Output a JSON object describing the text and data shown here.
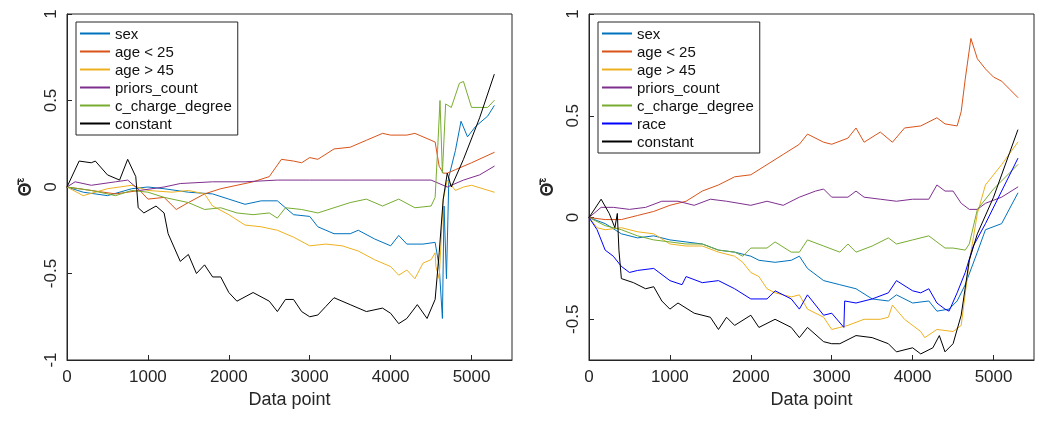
{
  "chart_data": [
    {
      "type": "line",
      "xlabel": "Data point",
      "ylabel": "Θ̄$^{ε}$",
      "xlim": [
        0,
        5500
      ],
      "xticks": [
        0,
        1000,
        2000,
        3000,
        4000,
        5000
      ],
      "ylim": [
        -1,
        1
      ],
      "yticks": [
        -1,
        -0.5,
        0,
        0.5,
        1
      ],
      "grid": false,
      "legend": "top left",
      "marker": "none",
      "line_style": "solid",
      "series": [
        {
          "name": "sex",
          "color": "#0072bd",
          "x": [
            0,
            200,
            500,
            800,
            1000,
            1200,
            1500,
            1800,
            2000,
            2200,
            2400,
            2600,
            2800,
            3000,
            3100,
            3300,
            3500,
            3600,
            3800,
            4000,
            4100,
            4200,
            4400,
            4550,
            4600,
            4640,
            4660,
            4690,
            4720,
            4800,
            4870,
            4950,
            5050,
            5200,
            5280
          ],
          "values": [
            0,
            -0.03,
            -0.05,
            -0.01,
            0,
            -0.01,
            -0.03,
            -0.04,
            -0.07,
            -0.1,
            -0.08,
            -0.08,
            -0.16,
            -0.17,
            -0.23,
            -0.27,
            -0.27,
            -0.25,
            -0.3,
            -0.34,
            -0.28,
            -0.33,
            -0.33,
            -0.32,
            -0.46,
            -0.76,
            -0.11,
            -0.53,
            0.06,
            0.21,
            0.38,
            0.29,
            0.35,
            0.41,
            0.47
          ]
        },
        {
          "name": "age < 25",
          "color": "#d95319",
          "x": [
            0,
            300,
            600,
            900,
            1000,
            1200,
            1350,
            1500,
            1700,
            1900,
            2100,
            2300,
            2500,
            2650,
            2800,
            2900,
            3000,
            3100,
            3300,
            3500,
            3700,
            3900,
            4000,
            4200,
            4300,
            4500,
            4550,
            4600,
            4650,
            4700,
            4800,
            5000,
            5280
          ],
          "values": [
            0,
            -0.02,
            -0.04,
            -0.02,
            -0.07,
            -0.06,
            -0.13,
            -0.09,
            -0.04,
            -0.01,
            0.01,
            0.03,
            0.06,
            0.16,
            0.15,
            0.14,
            0.17,
            0.16,
            0.22,
            0.23,
            0.27,
            0.31,
            0.3,
            0.3,
            0.31,
            0.27,
            0.26,
            0.12,
            0.08,
            0.08,
            0.1,
            0.14,
            0.2
          ]
        },
        {
          "name": "age > 45",
          "color": "#edb120",
          "x": [
            0,
            200,
            500,
            800,
            1000,
            1300,
            1500,
            1700,
            1800,
            2000,
            2200,
            2400,
            2600,
            2800,
            3000,
            3200,
            3400,
            3600,
            3800,
            4000,
            4100,
            4200,
            4300,
            4400,
            4500,
            4550,
            4560,
            4600,
            4650,
            4700,
            4800,
            4900,
            5000,
            5280
          ],
          "values": [
            0,
            -0.05,
            -0.01,
            0.01,
            -0.02,
            -0.03,
            -0.02,
            -0.04,
            -0.11,
            -0.16,
            -0.22,
            -0.23,
            -0.25,
            -0.29,
            -0.34,
            -0.33,
            -0.34,
            -0.37,
            -0.42,
            -0.46,
            -0.51,
            -0.48,
            -0.53,
            -0.44,
            -0.42,
            -0.38,
            -0.46,
            -0.53,
            -0.07,
            0.04,
            -0.02,
            0,
            0.01,
            -0.03
          ]
        },
        {
          "name": "priors_count",
          "color": "#7e2f8e",
          "x": [
            0,
            100,
            300,
            600,
            750,
            900,
            1200,
            1400,
            1800,
            2200,
            2600,
            3000,
            3500,
            4000,
            4500,
            4700,
            4900,
            5100,
            5280
          ],
          "values": [
            0,
            0.03,
            0.01,
            0.03,
            0.04,
            -0.02,
            0,
            0.02,
            0.03,
            0.03,
            0.04,
            0.04,
            0.04,
            0.04,
            0.04,
            0,
            0.04,
            0.07,
            0.12
          ]
        },
        {
          "name": "c_charge_degree",
          "color": "#77ac30",
          "x": [
            0,
            300,
            600,
            800,
            1000,
            1200,
            1500,
            1700,
            1900,
            2100,
            2300,
            2500,
            2600,
            2700,
            2900,
            3100,
            3300,
            3500,
            3700,
            3900,
            4100,
            4300,
            4500,
            4550,
            4580,
            4610,
            4640,
            4680,
            4750,
            4850,
            4900,
            5000,
            5200,
            5280
          ],
          "values": [
            0,
            -0.02,
            -0.05,
            -0.02,
            -0.03,
            -0.06,
            -0.09,
            -0.13,
            -0.12,
            -0.15,
            -0.16,
            -0.15,
            -0.18,
            -0.12,
            -0.13,
            -0.15,
            -0.12,
            -0.09,
            -0.07,
            -0.11,
            -0.07,
            -0.12,
            -0.11,
            -0.06,
            0.21,
            0.5,
            0.08,
            0.48,
            0.46,
            0.6,
            0.61,
            0.46,
            0.46,
            0.5
          ]
        },
        {
          "name": "constant",
          "color": "#000000",
          "x": [
            0,
            150,
            300,
            350,
            500,
            650,
            750,
            850,
            880,
            950,
            1100,
            1200,
            1250,
            1400,
            1500,
            1600,
            1700,
            1800,
            1900,
            2000,
            2100,
            2300,
            2500,
            2600,
            2700,
            2800,
            2900,
            3000,
            3100,
            3200,
            3300,
            3500,
            3700,
            3900,
            4000,
            4100,
            4200,
            4330,
            4450,
            4550,
            4600,
            4650,
            4700,
            4750,
            4900,
            5100,
            5280
          ],
          "values": [
            0,
            0.15,
            0.14,
            0.15,
            0.07,
            0.04,
            0.16,
            0.06,
            -0.12,
            -0.15,
            -0.11,
            -0.15,
            -0.27,
            -0.43,
            -0.39,
            -0.5,
            -0.45,
            -0.52,
            -0.52,
            -0.61,
            -0.66,
            -0.61,
            -0.66,
            -0.72,
            -0.65,
            -0.65,
            -0.72,
            -0.75,
            -0.74,
            -0.69,
            -0.64,
            -0.68,
            -0.72,
            -0.7,
            -0.73,
            -0.79,
            -0.76,
            -0.68,
            -0.76,
            -0.65,
            -0.38,
            -0.07,
            0.08,
            0,
            0.16,
            0.4,
            0.65
          ]
        }
      ]
    },
    {
      "type": "line",
      "xlabel": "Data point",
      "ylabel": "Θ̄$^{ε}$",
      "xlim": [
        0,
        5500
      ],
      "xticks": [
        0,
        1000,
        2000,
        3000,
        4000,
        5000
      ],
      "ylim": [
        -0.7,
        1
      ],
      "yticks": [
        -0.5,
        0,
        0.5,
        1
      ],
      "grid": false,
      "legend": "top left",
      "marker": "none",
      "line_style": "solid",
      "series": [
        {
          "name": "sex",
          "color": "#0072bd",
          "x": [
            0,
            200,
            400,
            600,
            800,
            1000,
            1200,
            1400,
            1600,
            1800,
            2000,
            2100,
            2300,
            2500,
            2600,
            2700,
            2900,
            3100,
            3300,
            3500,
            3700,
            3800,
            4000,
            4200,
            4300,
            4450,
            4550,
            4650,
            4800,
            4900,
            5100,
            5300
          ],
          "values": [
            0,
            -0.03,
            -0.08,
            -0.1,
            -0.09,
            -0.11,
            -0.12,
            -0.13,
            -0.16,
            -0.17,
            -0.19,
            -0.21,
            -0.22,
            -0.21,
            -0.19,
            -0.25,
            -0.31,
            -0.33,
            -0.35,
            -0.4,
            -0.41,
            -0.38,
            -0.42,
            -0.41,
            -0.46,
            -0.45,
            -0.41,
            -0.33,
            -0.17,
            -0.06,
            -0.03,
            0.12
          ]
        },
        {
          "name": "age < 25",
          "color": "#d95319",
          "x": [
            0,
            200,
            400,
            600,
            800,
            1000,
            1200,
            1400,
            1600,
            1800,
            2000,
            2200,
            2400,
            2600,
            2700,
            2900,
            3000,
            3200,
            3300,
            3400,
            3600,
            3750,
            3900,
            4100,
            4300,
            4400,
            4550,
            4600,
            4650,
            4720,
            4800,
            4900,
            5000,
            5100,
            5200,
            5300
          ],
          "values": [
            0,
            -0.01,
            -0.01,
            0.01,
            0.03,
            0.06,
            0.08,
            0.13,
            0.16,
            0.2,
            0.21,
            0.26,
            0.31,
            0.36,
            0.41,
            0.37,
            0.36,
            0.39,
            0.44,
            0.37,
            0.42,
            0.37,
            0.44,
            0.45,
            0.49,
            0.46,
            0.45,
            0.52,
            0.68,
            0.88,
            0.78,
            0.73,
            0.69,
            0.67,
            0.63,
            0.59
          ]
        },
        {
          "name": "age > 45",
          "color": "#edb120",
          "x": [
            0,
            100,
            200,
            400,
            600,
            800,
            1000,
            1200,
            1400,
            1600,
            1800,
            1900,
            2000,
            2100,
            2200,
            2300,
            2500,
            2600,
            2700,
            2900,
            3000,
            3100,
            3200,
            3400,
            3600,
            3700,
            3750,
            3900,
            4100,
            4150,
            4300,
            4500,
            4600,
            4700,
            4800,
            4900,
            5100,
            5300
          ],
          "values": [
            0,
            -0.05,
            -0.06,
            -0.05,
            -0.07,
            -0.08,
            -0.13,
            -0.14,
            -0.14,
            -0.17,
            -0.19,
            -0.22,
            -0.27,
            -0.29,
            -0.35,
            -0.37,
            -0.39,
            -0.38,
            -0.45,
            -0.49,
            -0.55,
            -0.54,
            -0.53,
            -0.5,
            -0.5,
            -0.49,
            -0.43,
            -0.5,
            -0.56,
            -0.59,
            -0.55,
            -0.56,
            -0.53,
            -0.22,
            0.02,
            0.16,
            0.26,
            0.37
          ]
        },
        {
          "name": "priors_count",
          "color": "#7e2f8e",
          "x": [
            0,
            150,
            300,
            500,
            700,
            900,
            1100,
            1300,
            1500,
            1700,
            2000,
            2200,
            2400,
            2600,
            2800,
            2900,
            3000,
            3200,
            3300,
            3400,
            3600,
            3800,
            4000,
            4200,
            4300,
            4400,
            4500,
            4600,
            4700,
            4800,
            4900,
            5100,
            5300
          ],
          "values": [
            0,
            0.05,
            0.05,
            0.04,
            0.05,
            0.08,
            0.08,
            0.06,
            0.09,
            0.08,
            0.06,
            0.08,
            0.06,
            0.1,
            0.13,
            0.14,
            0.1,
            0.1,
            0.13,
            0.1,
            0.09,
            0.08,
            0.09,
            0.09,
            0.16,
            0.13,
            0.13,
            0.07,
            0.04,
            0.04,
            0.07,
            0.1,
            0.15
          ]
        },
        {
          "name": "c_charge_degree",
          "color": "#77ac30",
          "x": [
            0,
            200,
            400,
            600,
            800,
            1000,
            1200,
            1400,
            1600,
            1800,
            1900,
            2000,
            2200,
            2300,
            2500,
            2600,
            2700,
            2900,
            3100,
            3200,
            3300,
            3500,
            3700,
            3800,
            4000,
            4200,
            4400,
            4500,
            4650,
            4700,
            4800,
            5000,
            5300
          ],
          "values": [
            0,
            -0.04,
            -0.06,
            -0.09,
            -0.11,
            -0.12,
            -0.13,
            -0.13,
            -0.16,
            -0.17,
            -0.19,
            -0.15,
            -0.15,
            -0.12,
            -0.17,
            -0.17,
            -0.11,
            -0.14,
            -0.17,
            -0.13,
            -0.17,
            -0.14,
            -0.1,
            -0.13,
            -0.11,
            -0.09,
            -0.15,
            -0.15,
            -0.16,
            -0.13,
            0.04,
            0.14,
            0.26
          ]
        },
        {
          "name": "race",
          "color": "#0000ff",
          "x": [
            0,
            100,
            200,
            300,
            400,
            500,
            600,
            800,
            1000,
            1150,
            1200,
            1400,
            1600,
            1800,
            2000,
            2200,
            2300,
            2500,
            2600,
            2700,
            2900,
            3000,
            3150,
            3160,
            3300,
            3500,
            3700,
            3800,
            4000,
            4100,
            4200,
            4300,
            4400,
            4450,
            4550,
            4650,
            4750,
            4900,
            5100,
            5300
          ],
          "values": [
            0,
            -0.06,
            -0.16,
            -0.19,
            -0.24,
            -0.27,
            -0.26,
            -0.25,
            -0.31,
            -0.33,
            -0.29,
            -0.32,
            -0.31,
            -0.35,
            -0.4,
            -0.4,
            -0.36,
            -0.4,
            -0.45,
            -0.38,
            -0.48,
            -0.47,
            -0.54,
            -0.41,
            -0.42,
            -0.4,
            -0.37,
            -0.31,
            -0.36,
            -0.37,
            -0.35,
            -0.42,
            -0.45,
            -0.46,
            -0.37,
            -0.27,
            -0.14,
            -0.03,
            0.13,
            0.29
          ]
        },
        {
          "name": "constant",
          "color": "#000000",
          "x": [
            0,
            150,
            250,
            320,
            350,
            370,
            400,
            550,
            700,
            800,
            900,
            1000,
            1100,
            1300,
            1500,
            1600,
            1700,
            1800,
            2000,
            2100,
            2300,
            2500,
            2600,
            2700,
            2900,
            3000,
            3100,
            3300,
            3500,
            3700,
            3800,
            4000,
            4100,
            4250,
            4330,
            4400,
            4500,
            4600,
            4700,
            4800,
            5000,
            5200,
            5300
          ],
          "values": [
            0,
            0.09,
            0.02,
            -0.05,
            0.02,
            -0.16,
            -0.3,
            -0.32,
            -0.35,
            -0.34,
            -0.41,
            -0.45,
            -0.42,
            -0.47,
            -0.49,
            -0.55,
            -0.49,
            -0.53,
            -0.48,
            -0.54,
            -0.5,
            -0.54,
            -0.59,
            -0.54,
            -0.61,
            -0.62,
            -0.62,
            -0.58,
            -0.59,
            -0.62,
            -0.66,
            -0.64,
            -0.67,
            -0.64,
            -0.58,
            -0.66,
            -0.62,
            -0.48,
            -0.21,
            -0.08,
            0.1,
            0.32,
            0.43
          ]
        }
      ]
    }
  ]
}
